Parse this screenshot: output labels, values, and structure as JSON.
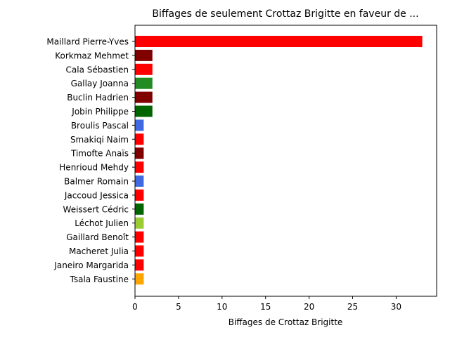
{
  "chart_data": {
    "type": "bar",
    "orientation": "horizontal",
    "title": "Biffages de seulement Crottaz Brigitte en faveur de ...",
    "xlabel": "Biffages de Crottaz Brigitte",
    "ylabel": "",
    "xlim": [
      0,
      34.65
    ],
    "xticks": [
      0,
      5,
      10,
      15,
      20,
      25,
      30
    ],
    "grid": false,
    "categories": [
      "Maillard Pierre-Yves",
      "Korkmaz Mehmet",
      "Cala Sébastien",
      "Gallay Joanna",
      "Buclin Hadrien",
      "Jobin Philippe",
      "Broulis Pascal",
      "Smakiqi Naim",
      "Timofte Anaïs",
      "Henrioud Mehdy",
      "Balmer Romain",
      "Jaccoud Jessica",
      "Weissert Cédric",
      "Léchot Julien",
      "Gaillard Benoît",
      "Macheret Julia",
      "Janeiro Margarida",
      "Tsala Faustine"
    ],
    "values": [
      33,
      2,
      2,
      2,
      2,
      2,
      1,
      1,
      1,
      1,
      1,
      1,
      1,
      1,
      1,
      1,
      1,
      1
    ],
    "colors": [
      "#ff0000",
      "#800000",
      "#ff0000",
      "#228b22",
      "#800000",
      "#006400",
      "#4169e1",
      "#ff0000",
      "#800000",
      "#ff0000",
      "#4169e1",
      "#ff0000",
      "#006400",
      "#9acd32",
      "#ff0000",
      "#ff0000",
      "#ff0000",
      "#ffa500"
    ]
  }
}
